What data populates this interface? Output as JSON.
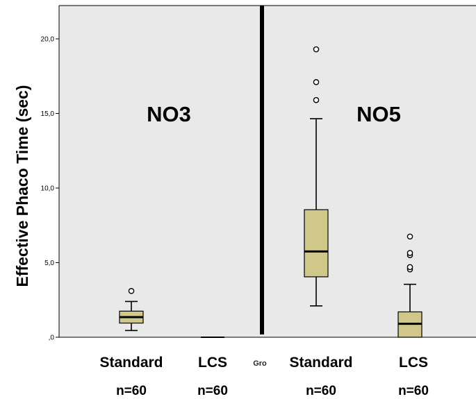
{
  "chart_data": {
    "type": "boxplot",
    "ylabel": "Effective Phaco Time (sec)",
    "ylim": [
      0,
      22.0
    ],
    "yticks": [
      0,
      5,
      10,
      15,
      20
    ],
    "ytick_labels": [
      ",0",
      "5,0",
      "10,0",
      "15,0",
      "20,0"
    ],
    "xlabel_fragment": "Gro",
    "colors": {
      "panel_bg": "#e9e9e9",
      "box_fill": "#cfc88a",
      "divider": "#000000"
    },
    "panels": [
      {
        "name": "NO3",
        "groups": [
          {
            "label": "Standard",
            "n_label": "n=60",
            "whisker_low": 0.45,
            "q1": 0.95,
            "median": 1.35,
            "q3": 1.75,
            "whisker_high": 2.4,
            "outliers": [
              3.1
            ]
          },
          {
            "label": "LCS",
            "n_label": "n=60",
            "whisker_low": 0.0,
            "q1": 0.0,
            "median": 0.0,
            "q3": 0.0,
            "whisker_high": 0.0,
            "outliers": []
          }
        ]
      },
      {
        "name": "NO5",
        "groups": [
          {
            "label": "Standard",
            "n_label": "n=60",
            "whisker_low": 2.1,
            "q1": 4.05,
            "median": 5.75,
            "q3": 8.55,
            "whisker_high": 14.65,
            "outliers": [
              15.9,
              17.1,
              19.3
            ]
          },
          {
            "label": "LCS",
            "n_label": "n=60",
            "whisker_low": 0.0,
            "q1": 0.0,
            "median": 0.9,
            "q3": 1.7,
            "whisker_high": 3.55,
            "outliers": [
              4.55,
              4.7,
              5.5,
              5.65,
              6.75
            ]
          }
        ]
      }
    ]
  }
}
